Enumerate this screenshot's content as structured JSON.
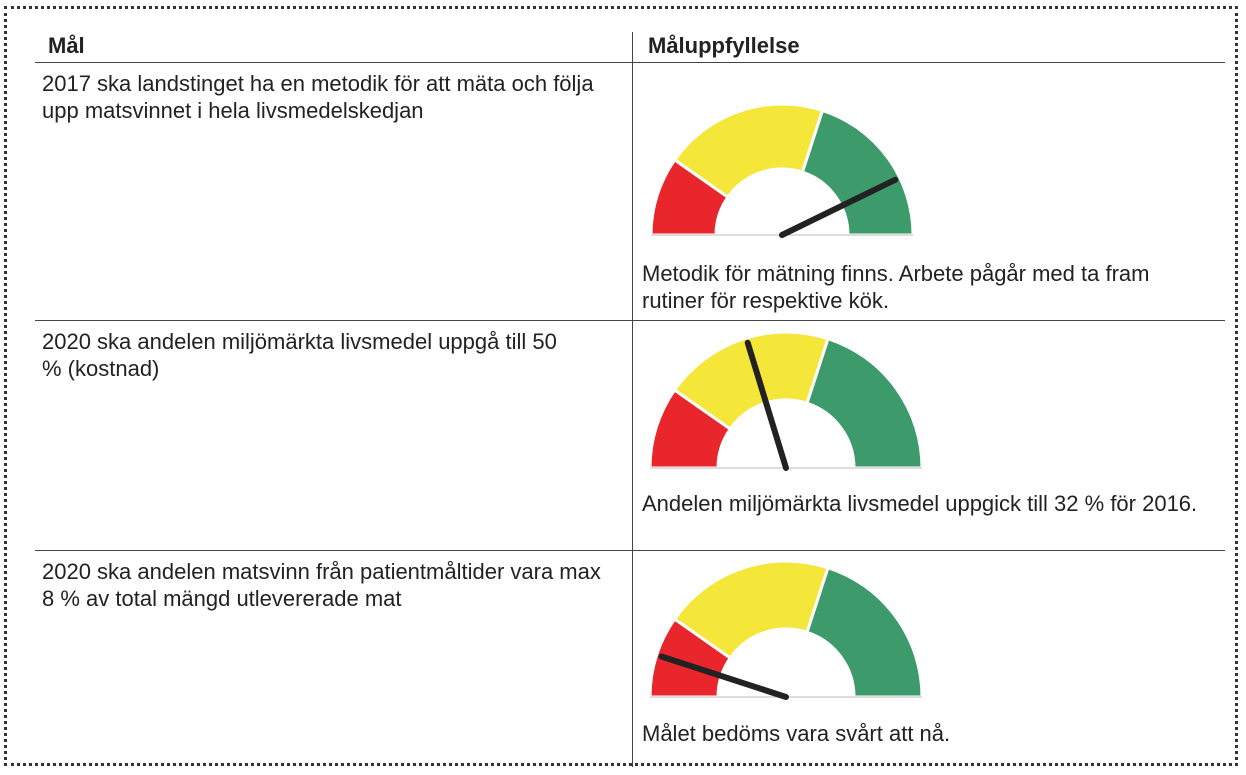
{
  "header": {
    "goal": "Mål",
    "status": "Måluppfyllelse"
  },
  "rows": [
    {
      "goal": "2017 ska landstinget ha en metodik för att mäta och följa upp matsvinnet i hela livsmedelskedjan",
      "status": "Metodik för mätning finns. Arbete pågår med ta fram rutiner för respektive kök."
    },
    {
      "goal": "2020 ska andelen miljömärkta livsmedel uppgå till 50 % (kostnad)",
      "status": "Andelen miljömärkta livsmedel uppgick till 32 % för 2016."
    },
    {
      "goal": "2020 ska andelen matsvinn från patientmåltider vara max 8 % av total mängd utlevererade mat",
      "status": "Målet bedöms vara svårt att nå."
    }
  ]
}
